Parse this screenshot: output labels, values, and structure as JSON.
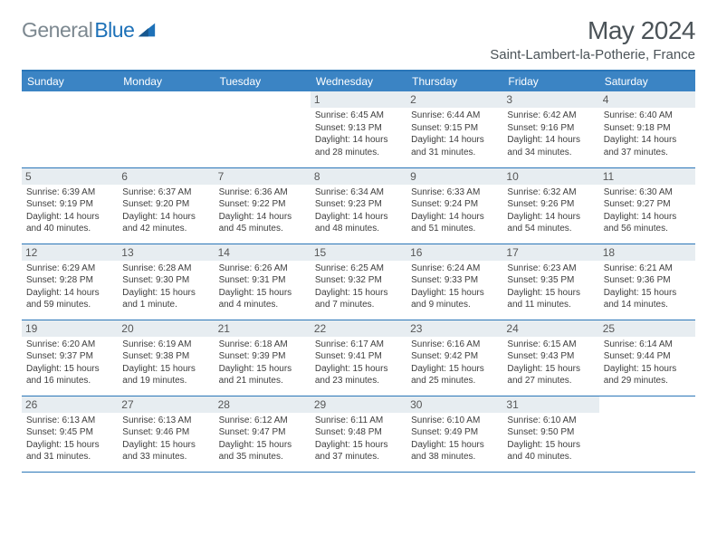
{
  "brand": {
    "text1": "General",
    "text2": "Blue"
  },
  "title": "May 2024",
  "location": "Saint-Lambert-la-Potherie, France",
  "colors": {
    "header_bg": "#3b84c4",
    "border": "#2a76b8",
    "daynum_bg": "#e7edf1",
    "logo_gray": "#7c8890",
    "logo_blue": "#1d71b8",
    "text_dark": "#4b5358"
  },
  "day_headers": [
    "Sunday",
    "Monday",
    "Tuesday",
    "Wednesday",
    "Thursday",
    "Friday",
    "Saturday"
  ],
  "weeks": [
    [
      null,
      null,
      null,
      {
        "n": "1",
        "sr": "Sunrise: 6:45 AM",
        "ss": "Sunset: 9:13 PM",
        "d1": "Daylight: 14 hours",
        "d2": "and 28 minutes."
      },
      {
        "n": "2",
        "sr": "Sunrise: 6:44 AM",
        "ss": "Sunset: 9:15 PM",
        "d1": "Daylight: 14 hours",
        "d2": "and 31 minutes."
      },
      {
        "n": "3",
        "sr": "Sunrise: 6:42 AM",
        "ss": "Sunset: 9:16 PM",
        "d1": "Daylight: 14 hours",
        "d2": "and 34 minutes."
      },
      {
        "n": "4",
        "sr": "Sunrise: 6:40 AM",
        "ss": "Sunset: 9:18 PM",
        "d1": "Daylight: 14 hours",
        "d2": "and 37 minutes."
      }
    ],
    [
      {
        "n": "5",
        "sr": "Sunrise: 6:39 AM",
        "ss": "Sunset: 9:19 PM",
        "d1": "Daylight: 14 hours",
        "d2": "and 40 minutes."
      },
      {
        "n": "6",
        "sr": "Sunrise: 6:37 AM",
        "ss": "Sunset: 9:20 PM",
        "d1": "Daylight: 14 hours",
        "d2": "and 42 minutes."
      },
      {
        "n": "7",
        "sr": "Sunrise: 6:36 AM",
        "ss": "Sunset: 9:22 PM",
        "d1": "Daylight: 14 hours",
        "d2": "and 45 minutes."
      },
      {
        "n": "8",
        "sr": "Sunrise: 6:34 AM",
        "ss": "Sunset: 9:23 PM",
        "d1": "Daylight: 14 hours",
        "d2": "and 48 minutes."
      },
      {
        "n": "9",
        "sr": "Sunrise: 6:33 AM",
        "ss": "Sunset: 9:24 PM",
        "d1": "Daylight: 14 hours",
        "d2": "and 51 minutes."
      },
      {
        "n": "10",
        "sr": "Sunrise: 6:32 AM",
        "ss": "Sunset: 9:26 PM",
        "d1": "Daylight: 14 hours",
        "d2": "and 54 minutes."
      },
      {
        "n": "11",
        "sr": "Sunrise: 6:30 AM",
        "ss": "Sunset: 9:27 PM",
        "d1": "Daylight: 14 hours",
        "d2": "and 56 minutes."
      }
    ],
    [
      {
        "n": "12",
        "sr": "Sunrise: 6:29 AM",
        "ss": "Sunset: 9:28 PM",
        "d1": "Daylight: 14 hours",
        "d2": "and 59 minutes."
      },
      {
        "n": "13",
        "sr": "Sunrise: 6:28 AM",
        "ss": "Sunset: 9:30 PM",
        "d1": "Daylight: 15 hours",
        "d2": "and 1 minute."
      },
      {
        "n": "14",
        "sr": "Sunrise: 6:26 AM",
        "ss": "Sunset: 9:31 PM",
        "d1": "Daylight: 15 hours",
        "d2": "and 4 minutes."
      },
      {
        "n": "15",
        "sr": "Sunrise: 6:25 AM",
        "ss": "Sunset: 9:32 PM",
        "d1": "Daylight: 15 hours",
        "d2": "and 7 minutes."
      },
      {
        "n": "16",
        "sr": "Sunrise: 6:24 AM",
        "ss": "Sunset: 9:33 PM",
        "d1": "Daylight: 15 hours",
        "d2": "and 9 minutes."
      },
      {
        "n": "17",
        "sr": "Sunrise: 6:23 AM",
        "ss": "Sunset: 9:35 PM",
        "d1": "Daylight: 15 hours",
        "d2": "and 11 minutes."
      },
      {
        "n": "18",
        "sr": "Sunrise: 6:21 AM",
        "ss": "Sunset: 9:36 PM",
        "d1": "Daylight: 15 hours",
        "d2": "and 14 minutes."
      }
    ],
    [
      {
        "n": "19",
        "sr": "Sunrise: 6:20 AM",
        "ss": "Sunset: 9:37 PM",
        "d1": "Daylight: 15 hours",
        "d2": "and 16 minutes."
      },
      {
        "n": "20",
        "sr": "Sunrise: 6:19 AM",
        "ss": "Sunset: 9:38 PM",
        "d1": "Daylight: 15 hours",
        "d2": "and 19 minutes."
      },
      {
        "n": "21",
        "sr": "Sunrise: 6:18 AM",
        "ss": "Sunset: 9:39 PM",
        "d1": "Daylight: 15 hours",
        "d2": "and 21 minutes."
      },
      {
        "n": "22",
        "sr": "Sunrise: 6:17 AM",
        "ss": "Sunset: 9:41 PM",
        "d1": "Daylight: 15 hours",
        "d2": "and 23 minutes."
      },
      {
        "n": "23",
        "sr": "Sunrise: 6:16 AM",
        "ss": "Sunset: 9:42 PM",
        "d1": "Daylight: 15 hours",
        "d2": "and 25 minutes."
      },
      {
        "n": "24",
        "sr": "Sunrise: 6:15 AM",
        "ss": "Sunset: 9:43 PM",
        "d1": "Daylight: 15 hours",
        "d2": "and 27 minutes."
      },
      {
        "n": "25",
        "sr": "Sunrise: 6:14 AM",
        "ss": "Sunset: 9:44 PM",
        "d1": "Daylight: 15 hours",
        "d2": "and 29 minutes."
      }
    ],
    [
      {
        "n": "26",
        "sr": "Sunrise: 6:13 AM",
        "ss": "Sunset: 9:45 PM",
        "d1": "Daylight: 15 hours",
        "d2": "and 31 minutes."
      },
      {
        "n": "27",
        "sr": "Sunrise: 6:13 AM",
        "ss": "Sunset: 9:46 PM",
        "d1": "Daylight: 15 hours",
        "d2": "and 33 minutes."
      },
      {
        "n": "28",
        "sr": "Sunrise: 6:12 AM",
        "ss": "Sunset: 9:47 PM",
        "d1": "Daylight: 15 hours",
        "d2": "and 35 minutes."
      },
      {
        "n": "29",
        "sr": "Sunrise: 6:11 AM",
        "ss": "Sunset: 9:48 PM",
        "d1": "Daylight: 15 hours",
        "d2": "and 37 minutes."
      },
      {
        "n": "30",
        "sr": "Sunrise: 6:10 AM",
        "ss": "Sunset: 9:49 PM",
        "d1": "Daylight: 15 hours",
        "d2": "and 38 minutes."
      },
      {
        "n": "31",
        "sr": "Sunrise: 6:10 AM",
        "ss": "Sunset: 9:50 PM",
        "d1": "Daylight: 15 hours",
        "d2": "and 40 minutes."
      },
      null
    ]
  ]
}
